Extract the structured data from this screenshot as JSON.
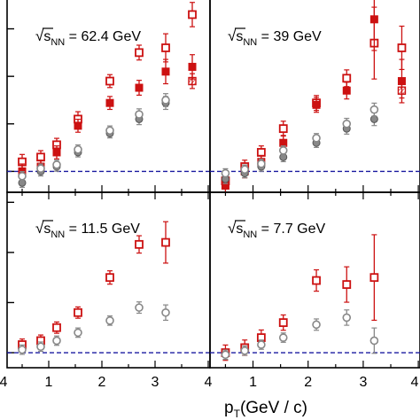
{
  "chart_data": [
    {
      "type": "scatter",
      "panel": "top-left",
      "label": {
        "sqrt": "√",
        "s": "s",
        "sub": "NN",
        "value": " = 62.4 GeV"
      },
      "xlim": [
        0,
        4
      ],
      "reference_line_y": 1.0,
      "series": [
        {
          "marker": "open-square",
          "color": "#cc1111",
          "points": [
            [
              0.5,
              1.1
            ],
            [
              0.85,
              1.15
            ],
            [
              1.15,
              1.28
            ],
            [
              1.55,
              1.55
            ],
            [
              2.15,
              1.95
            ],
            [
              2.7,
              2.25
            ],
            [
              3.2,
              2.3
            ],
            [
              3.7,
              2.65
            ]
          ],
          "errors": [
            0.05,
            0.04,
            0.04,
            0.05,
            0.04,
            0.05,
            0.12,
            0.1
          ]
        },
        {
          "marker": "filled-square",
          "color": "#cc1111",
          "points": [
            [
              0.5,
              1.0
            ],
            [
              0.85,
              1.05
            ],
            [
              1.15,
              1.2
            ],
            [
              1.55,
              1.48
            ],
            [
              2.15,
              1.72
            ],
            [
              2.7,
              1.88
            ],
            [
              3.2,
              2.05
            ],
            [
              3.7,
              2.1
            ]
          ],
          "errors": [
            0.05,
            0.04,
            0.04,
            0.04,
            0.04,
            0.05,
            0.1,
            0.1
          ]
        },
        {
          "marker": "hatched-square",
          "color": "#cc1111",
          "points": [
            [
              3.7,
              1.95
            ]
          ],
          "errors": [
            0.05
          ]
        },
        {
          "marker": "filled-circle",
          "color": "#888888",
          "points": [
            [
              0.5,
              0.88
            ],
            [
              0.85,
              1.0
            ],
            [
              1.15,
              1.05
            ],
            [
              1.55,
              1.2
            ],
            [
              2.15,
              1.4
            ],
            [
              2.7,
              1.55
            ],
            [
              3.2,
              1.72
            ]
          ],
          "errors": [
            0.02,
            0.02,
            0.02,
            0.02,
            0.02,
            0.03,
            0.04
          ]
        },
        {
          "marker": "open-circle",
          "color": "#888888",
          "points": [
            [
              0.5,
              0.95
            ],
            [
              0.85,
              1.03
            ],
            [
              1.15,
              1.07
            ],
            [
              1.55,
              1.23
            ],
            [
              2.15,
              1.43
            ],
            [
              2.7,
              1.6
            ],
            [
              3.2,
              1.75
            ]
          ],
          "errors": [
            0.02,
            0.02,
            0.02,
            0.02,
            0.02,
            0.03,
            0.04
          ]
        }
      ]
    },
    {
      "type": "scatter",
      "panel": "top-right",
      "label": {
        "sqrt": "√",
        "s": "s",
        "sub": "NN",
        "value": " = 39 GeV"
      },
      "xlim": [
        0,
        4
      ],
      "reference_line_y": 1.0,
      "series": [
        {
          "marker": "open-square",
          "color": "#cc1111",
          "points": [
            [
              0.5,
              0.9
            ],
            [
              0.85,
              1.05
            ],
            [
              1.15,
              1.2
            ],
            [
              1.55,
              1.45
            ],
            [
              2.15,
              1.72
            ],
            [
              2.7,
              1.98
            ],
            [
              3.2,
              2.35
            ],
            [
              3.7,
              2.3
            ]
          ],
          "errors": [
            0.05,
            0.04,
            0.04,
            0.05,
            0.05,
            0.06,
            0.35,
            0.2
          ]
        },
        {
          "marker": "filled-square",
          "color": "#cc1111",
          "points": [
            [
              0.5,
              0.85
            ],
            [
              0.85,
              1.0
            ],
            [
              1.15,
              1.1
            ],
            [
              1.55,
              1.3
            ],
            [
              2.15,
              1.7
            ],
            [
              2.7,
              1.85
            ],
            [
              3.2,
              2.6
            ],
            [
              3.7,
              1.95
            ]
          ],
          "errors": [
            0.05,
            0.04,
            0.04,
            0.05,
            0.05,
            0.06,
            0.3,
            0.2
          ]
        },
        {
          "marker": "hatched-square",
          "color": "#cc1111",
          "points": [
            [
              3.7,
              1.85
            ]
          ],
          "errors": [
            0.05
          ]
        },
        {
          "marker": "filled-circle",
          "color": "#888888",
          "points": [
            [
              0.5,
              0.92
            ],
            [
              0.85,
              0.98
            ],
            [
              1.15,
              1.05
            ],
            [
              1.55,
              1.15
            ],
            [
              2.15,
              1.3
            ],
            [
              2.7,
              1.45
            ],
            [
              3.2,
              1.55
            ]
          ],
          "errors": [
            0.02,
            0.02,
            0.02,
            0.02,
            0.02,
            0.03,
            0.04
          ]
        },
        {
          "marker": "open-circle",
          "color": "#888888",
          "points": [
            [
              0.5,
              0.98
            ],
            [
              0.85,
              1.02
            ],
            [
              1.15,
              1.08
            ],
            [
              1.55,
              1.22
            ],
            [
              2.15,
              1.35
            ],
            [
              2.7,
              1.5
            ],
            [
              3.2,
              1.65
            ]
          ],
          "errors": [
            0.02,
            0.02,
            0.02,
            0.02,
            0.02,
            0.03,
            0.04
          ]
        }
      ]
    },
    {
      "type": "scatter",
      "panel": "bottom-left",
      "label": {
        "sqrt": "√",
        "s": "s",
        "sub": "NN",
        "value": " = 11.5 GeV"
      },
      "xlim": [
        0,
        4
      ],
      "reference_line_y": 1.0,
      "series": [
        {
          "marker": "open-square",
          "color": "#cc1111",
          "points": [
            [
              0.5,
              1.08
            ],
            [
              0.85,
              1.12
            ],
            [
              1.15,
              1.25
            ],
            [
              1.55,
              1.4
            ],
            [
              2.15,
              1.75
            ],
            [
              2.7,
              2.08
            ],
            [
              3.2,
              2.1
            ]
          ],
          "errors": [
            0.03,
            0.03,
            0.03,
            0.03,
            0.04,
            0.06,
            0.18
          ]
        },
        {
          "marker": "open-circle",
          "color": "#888888",
          "points": [
            [
              0.5,
              1.03
            ],
            [
              0.85,
              1.06
            ],
            [
              1.15,
              1.12
            ],
            [
              1.55,
              1.2
            ],
            [
              2.15,
              1.32
            ],
            [
              2.7,
              1.45
            ],
            [
              3.2,
              1.4
            ]
          ],
          "errors": [
            0.02,
            0.02,
            0.02,
            0.02,
            0.02,
            0.03,
            0.05
          ]
        }
      ]
    },
    {
      "type": "scatter",
      "panel": "bottom-right",
      "label": {
        "sqrt": "√",
        "s": "s",
        "sub": "NN",
        "value": " = 7.7 GeV"
      },
      "xlim": [
        0,
        4
      ],
      "reference_line_y": 1.0,
      "series": [
        {
          "marker": "open-square",
          "color": "#cc1111",
          "points": [
            [
              0.5,
              1.0
            ],
            [
              0.85,
              1.05
            ],
            [
              1.15,
              1.15
            ],
            [
              1.55,
              1.3
            ],
            [
              2.15,
              1.72
            ],
            [
              2.7,
              1.68
            ],
            [
              3.2,
              1.75
            ]
          ],
          "errors": [
            0.05,
            0.05,
            0.05,
            0.05,
            0.08,
            0.15,
            0.4
          ]
        },
        {
          "marker": "open-circle",
          "color": "#888888",
          "points": [
            [
              0.5,
              0.98
            ],
            [
              0.85,
              1.02
            ],
            [
              1.15,
              1.08
            ],
            [
              1.55,
              1.15
            ],
            [
              2.15,
              1.28
            ],
            [
              2.7,
              1.35
            ],
            [
              3.2,
              1.12
            ]
          ],
          "errors": [
            0.02,
            0.02,
            0.02,
            0.02,
            0.03,
            0.05,
            0.1
          ]
        }
      ]
    }
  ],
  "x_axis": {
    "label_main": "p",
    "label_sub": "T",
    "label_rest": "(GeV / c)",
    "left_ticks": [
      "4",
      "1",
      "2",
      "3",
      "4"
    ],
    "right_ticks": [
      "1",
      "2",
      "3",
      "4"
    ]
  },
  "colors": {
    "red": "#cc1111",
    "gray": "#888888",
    "dash": "#1a1aa0"
  }
}
